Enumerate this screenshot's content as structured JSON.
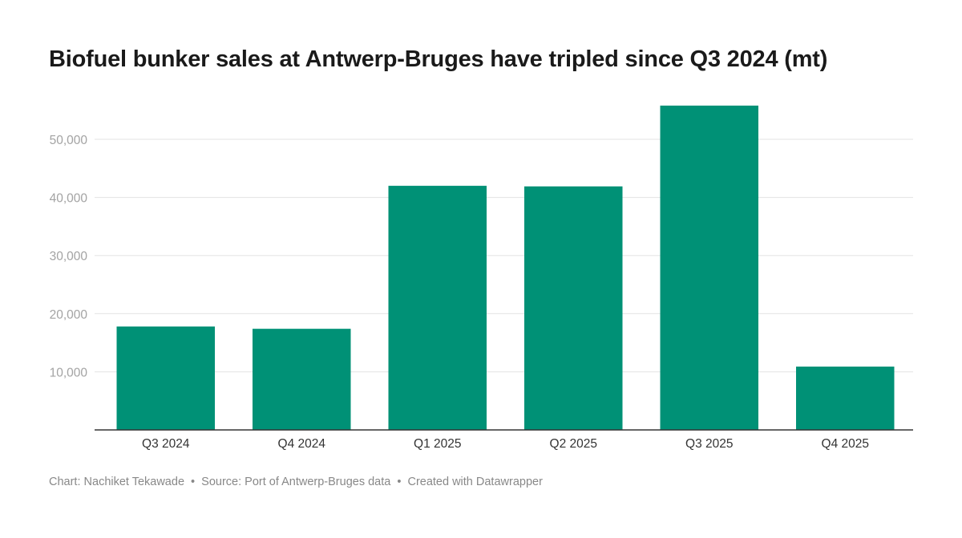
{
  "title": "Biofuel bunker sales at Antwerp-Bruges have tripled since Q3 2024 (mt)",
  "footer": {
    "chart_label": "Chart:",
    "author": "Nachiket Tekawade",
    "separator": "•",
    "source_label": "Source:",
    "source": "Port of Antwerp-Bruges data",
    "created_with": "Created with Datawrapper"
  },
  "colors": {
    "bar": "#009176",
    "grid": "#e3e3e3",
    "axis": "#333333",
    "tick_label": "#a3a3a3",
    "category_label": "#333333"
  },
  "chart_data": {
    "type": "bar",
    "title": "Biofuel bunker sales at Antwerp-Bruges have tripled since Q3 2024 (mt)",
    "categories": [
      "Q3 2024",
      "Q4 2024",
      "Q1 2025",
      "Q2 2025",
      "Q3 2025",
      "Q4 2025"
    ],
    "values": [
      17800,
      17400,
      42000,
      41900,
      55800,
      10900
    ],
    "xlabel": "",
    "ylabel": "",
    "ylim": [
      0,
      56000
    ],
    "yticks": [
      10000,
      20000,
      30000,
      40000,
      50000
    ],
    "ytick_labels": [
      "10,000",
      "20,000",
      "30,000",
      "40,000",
      "50,000"
    ],
    "grid": true,
    "legend": "none"
  }
}
